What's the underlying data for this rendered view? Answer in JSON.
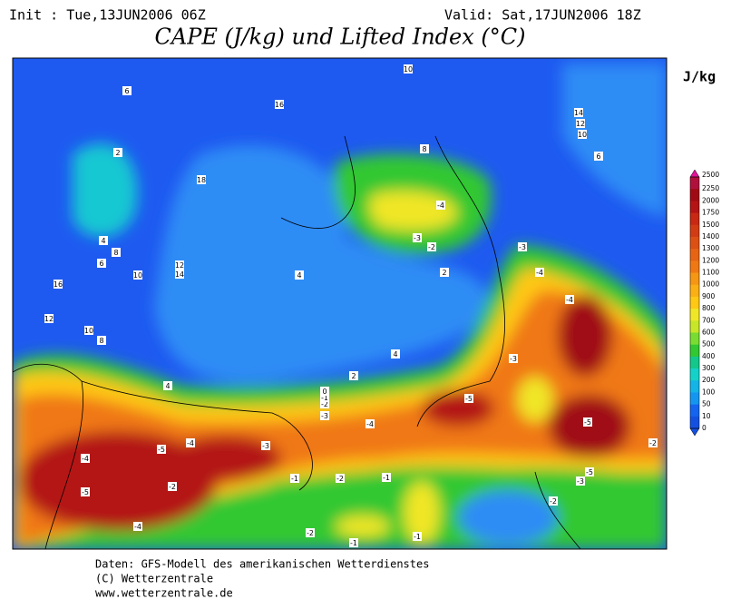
{
  "header": {
    "init": "Init : Tue,13JUN2006 06Z",
    "valid": "Valid: Sat,17JUN2006 18Z",
    "title": "CAPE (J/kg) und Lifted Index (°C)"
  },
  "colorbar": {
    "unit": "J/kg",
    "levels": [
      "2500",
      "2250",
      "2000",
      "1750",
      "1500",
      "1400",
      "1300",
      "1200",
      "1100",
      "1000",
      "900",
      "800",
      "700",
      "600",
      "500",
      "400",
      "300",
      "200",
      "100",
      "50",
      "10",
      "0"
    ],
    "colors": [
      "#e0159a",
      "#b0103c",
      "#a00a14",
      "#b41414",
      "#c82814",
      "#d23c14",
      "#dc5014",
      "#e66414",
      "#f07814",
      "#f59614",
      "#faaf14",
      "#ffc814",
      "#f0e628",
      "#c8e628",
      "#78dc32",
      "#32c832",
      "#14c88c",
      "#14d2c8",
      "#14b4e6",
      "#1496f0",
      "#1464f0",
      "#1450e0"
    ]
  },
  "contour_labels": [
    "6",
    "10",
    "16",
    "14",
    "12",
    "10",
    "6",
    "8",
    "2",
    "18",
    "4",
    "6",
    "8",
    "10",
    "12",
    "14",
    "16",
    "12",
    "10",
    "8",
    "-4",
    "-3",
    "-2",
    "-4",
    "-4",
    "-3",
    "-3",
    "-5",
    "-5",
    "-4",
    "-5",
    "-4",
    "-2",
    "-4",
    "-5",
    "-4",
    "-3",
    "-2",
    "-1",
    "-2",
    "-1",
    "-1",
    "-2",
    "-1",
    "-2",
    "2",
    "4",
    "4",
    "4",
    "2",
    "-3",
    "-2",
    "-1",
    "0",
    "-5",
    "-3"
  ],
  "footer": [
    "Daten: GFS-Modell des amerikanischen Wetterdienstes",
    "(C) Wetterzentrale",
    "www.wetterzentrale.de"
  ]
}
